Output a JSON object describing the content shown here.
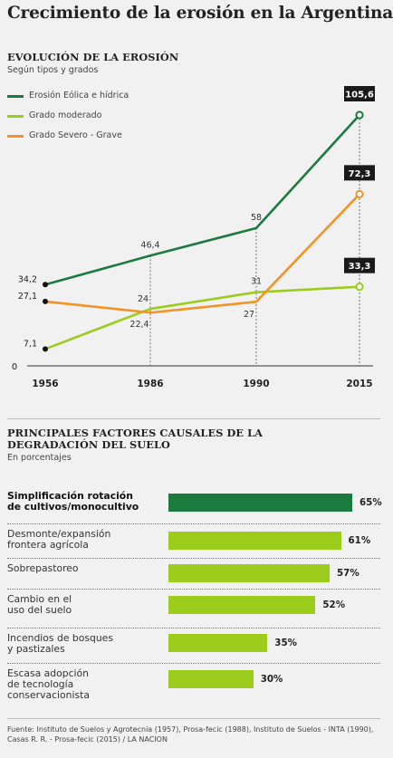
{
  "title": "Crecimiento de la erosión en la Argentina",
  "line_section": {
    "title": "EVOLUCIÓN DE LA EROSIÓN",
    "subtitle": "Según tipos y grados"
  },
  "bar_section": {
    "title_line1": "PRINCIPALES FACTORES CAUSALES DE LA",
    "title_line2": "DEGRADACIÓN DEL SUELO",
    "subtitle": "En porcentajes"
  },
  "colors": {
    "dark_green": "#1b7a3e",
    "light_green": "#9ccc1c",
    "orange": "#f39325",
    "label_box": "#1a1a1a"
  },
  "source": "Fuente: Instituto de Suelos y Agrotecnia (1957), Prosa-fecic (1988), Instituto de Suelos - INTA (1990), Casas R. R. - Prosa-fecic (2015) / LA NACION",
  "chart_data": [
    {
      "type": "line",
      "title": "EVOLUCIÓN DE LA EROSIÓN",
      "subtitle": "Según tipos y grados",
      "x": [
        "1956",
        "1986",
        "1990",
        "2015"
      ],
      "y_axis_tick": "0",
      "ylim": [
        0,
        105.6
      ],
      "series": [
        {
          "name": "Erosión Eólica e hídrica",
          "color": "#1b7a3e",
          "values": [
            34.2,
            46.4,
            58,
            105.6
          ],
          "labels": [
            "34,2",
            "46,4",
            "58",
            "105,6"
          ]
        },
        {
          "name": "Grado moderado",
          "color": "#9ccc1c",
          "values": [
            7.1,
            24,
            31,
            33.3
          ],
          "labels": [
            "7,1",
            "24",
            "31",
            "33,3"
          ]
        },
        {
          "name": "Grado Severo - Grave",
          "color": "#f39325",
          "values": [
            27.1,
            22.4,
            27,
            72.3
          ],
          "labels": [
            "27,1",
            "22,4",
            "27",
            "72,3"
          ]
        }
      ],
      "legend": "top-left"
    },
    {
      "type": "bar",
      "orientation": "horizontal",
      "title": "PRINCIPALES FACTORES CAUSALES DE LA DEGRADACIÓN DEL SUELO",
      "subtitle": "En porcentajes",
      "xlim": [
        0,
        65
      ],
      "categories": [
        {
          "lines": [
            "Simplificación rotación",
            "de cultivos/monocultivo"
          ],
          "value": 65,
          "label": "65%",
          "highlight": true
        },
        {
          "lines": [
            "Desmonte/expansión",
            "frontera agrícola"
          ],
          "value": 61,
          "label": "61%",
          "highlight": false
        },
        {
          "lines": [
            "Sobrepastoreo"
          ],
          "value": 57,
          "label": "57%",
          "highlight": false
        },
        {
          "lines": [
            "Cambio en el",
            "uso del suelo"
          ],
          "value": 52,
          "label": "52%",
          "highlight": false
        },
        {
          "lines": [
            "Incendios de bosques",
            "y pastizales"
          ],
          "value": 35,
          "label": "35%",
          "highlight": false
        },
        {
          "lines": [
            "Escasa adopción",
            "de tecnología",
            "conservacionista"
          ],
          "value": 30,
          "label": "30%",
          "highlight": false
        }
      ]
    }
  ]
}
